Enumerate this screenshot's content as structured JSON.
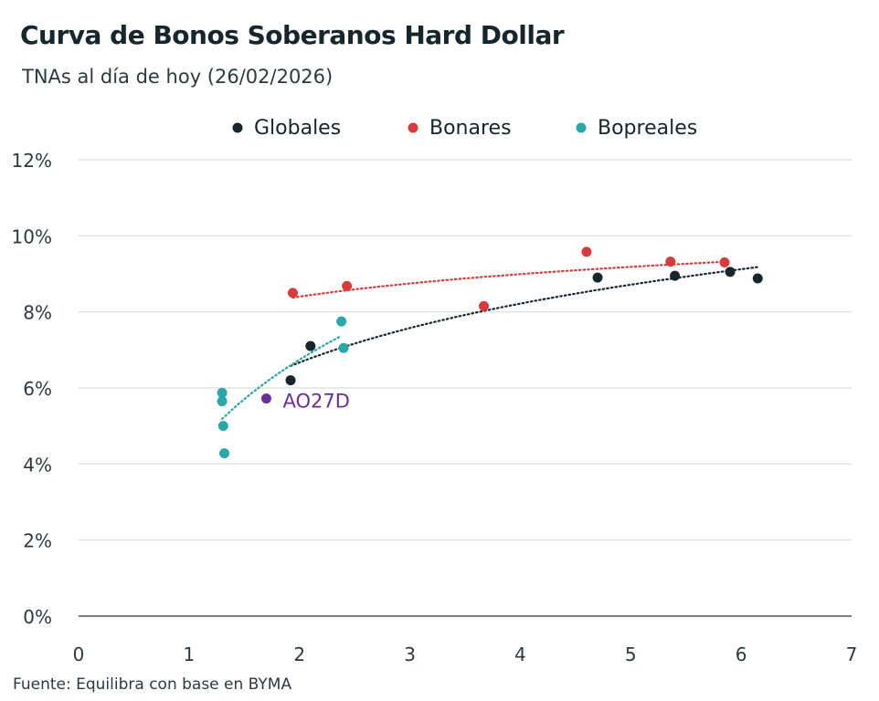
{
  "header": {
    "title": "Curva de Bonos Soberanos Hard Dollar",
    "subtitle": "TNAs al día de hoy (26/02/2026)"
  },
  "footer": {
    "source": "Fuente: Equilibra con base en BYMA"
  },
  "colors": {
    "globales": "#16262d",
    "bonares": "#d93a3a",
    "bopreales": "#2aa8a8",
    "highlight": "#6a2e99",
    "grid": "#dcdcdc",
    "axis": "#555555"
  },
  "chart_data": {
    "type": "scatter",
    "title": "Curva de Bonos Soberanos Hard Dollar",
    "subtitle": "TNAs al día de hoy (26/02/2026)",
    "xlabel": "",
    "ylabel": "",
    "xlim": [
      0,
      7
    ],
    "ylim": [
      0,
      12
    ],
    "x_ticks": [
      0,
      1,
      2,
      3,
      4,
      5,
      6,
      7
    ],
    "y_ticks": [
      0,
      2,
      4,
      6,
      8,
      10,
      12
    ],
    "y_tick_labels": [
      "0%",
      "2%",
      "4%",
      "6%",
      "8%",
      "10%",
      "12%"
    ],
    "grid": "horizontal",
    "legend_position": "top",
    "series": [
      {
        "name": "Globales",
        "color": "#16262d",
        "points": [
          [
            1.92,
            6.2
          ],
          [
            2.1,
            7.1
          ],
          [
            4.7,
            8.9
          ],
          [
            5.4,
            8.95
          ],
          [
            5.9,
            9.05
          ],
          [
            6.15,
            8.88
          ]
        ],
        "trendline": "logarithmic",
        "trend_range": [
          1.92,
          6.15
        ]
      },
      {
        "name": "Bonares",
        "color": "#d93a3a",
        "points": [
          [
            1.94,
            8.5
          ],
          [
            2.43,
            8.68
          ],
          [
            3.67,
            8.15
          ],
          [
            4.6,
            9.58
          ],
          [
            5.36,
            9.32
          ],
          [
            5.85,
            9.3
          ]
        ],
        "trendline": "logarithmic",
        "trend_range": [
          1.94,
          5.85
        ]
      },
      {
        "name": "Bopreales",
        "color": "#2aa8a8",
        "points": [
          [
            1.3,
            5.87
          ],
          [
            1.3,
            5.65
          ],
          [
            1.31,
            5.0
          ],
          [
            1.32,
            4.28
          ],
          [
            2.38,
            7.75
          ],
          [
            2.4,
            7.05
          ]
        ],
        "trendline": "logarithmic",
        "trend_range": [
          1.3,
          2.38
        ]
      }
    ],
    "annotations": [
      {
        "label": "AO27D",
        "x": 1.7,
        "y": 5.72,
        "color": "#6a2e99"
      }
    ]
  }
}
